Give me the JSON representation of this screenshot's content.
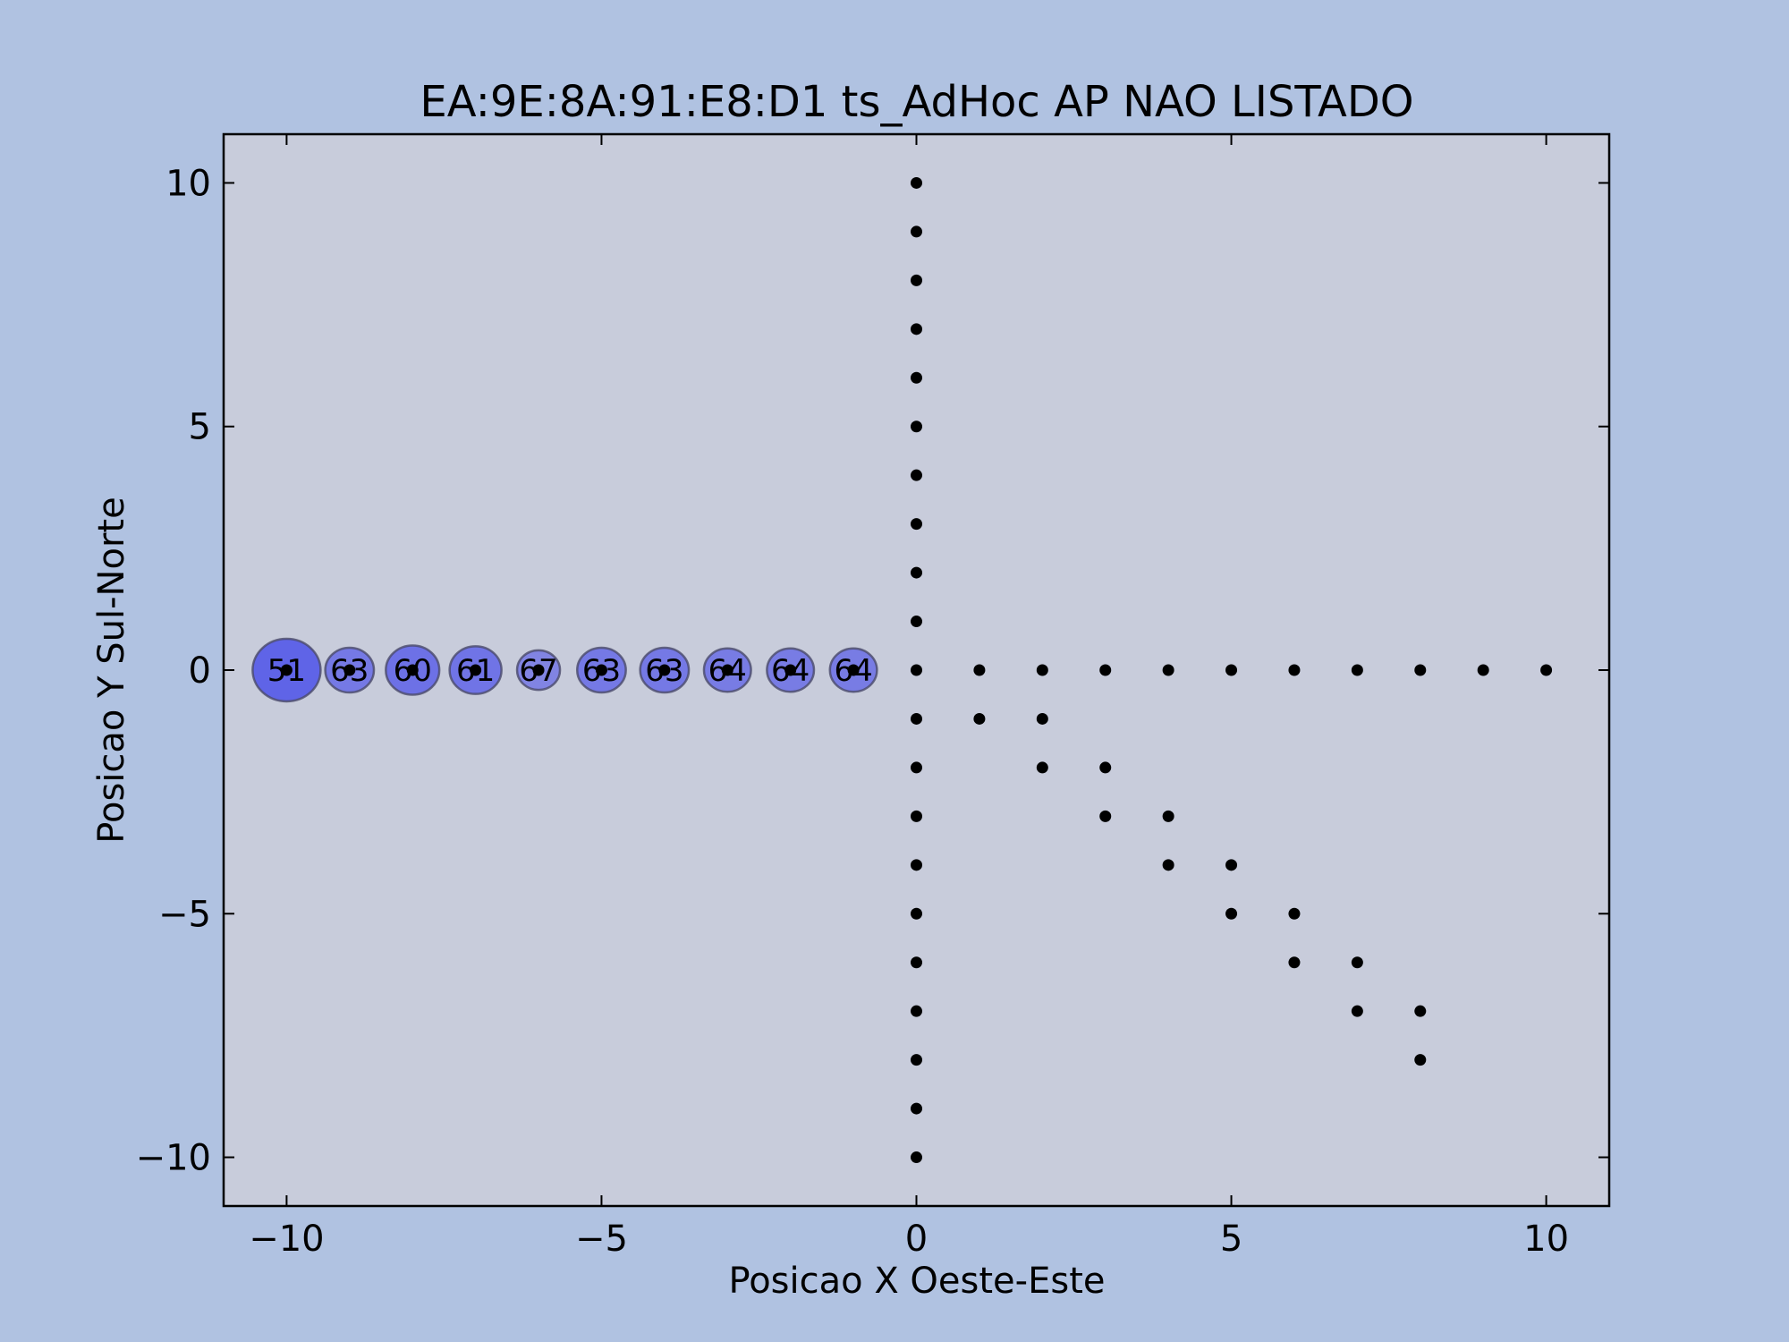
{
  "chart_data": {
    "type": "scatter",
    "title": "EA:9E:8A:91:E8:D1 ts_AdHoc AP NAO LISTADO",
    "xlabel": "Posicao X Oeste-Este",
    "ylabel": "Posicao Y Sul-Norte",
    "xlim": [
      -11,
      11
    ],
    "ylim": [
      -11,
      11
    ],
    "xticks": [
      -10,
      -5,
      0,
      5,
      10
    ],
    "yticks": [
      -10,
      -5,
      0,
      5,
      10
    ],
    "xtick_labels": [
      "−10",
      "−5",
      "0",
      "5",
      "10"
    ],
    "ytick_labels": [
      "−10",
      "−5",
      "0",
      "5",
      "10"
    ],
    "grid": false,
    "colors": {
      "figure_bg": "#b0c2e1",
      "axes_bg": "#c8ccdb",
      "bubble_fill": "#5a5ee8",
      "bubble_edge": "#4a4a6a",
      "point": "#000000",
      "bubble_label": "#ffffff"
    },
    "measurement_points": [
      {
        "x": 0,
        "y": 10
      },
      {
        "x": 0,
        "y": 9
      },
      {
        "x": 0,
        "y": 8
      },
      {
        "x": 0,
        "y": 7
      },
      {
        "x": 0,
        "y": 6
      },
      {
        "x": 0,
        "y": 5
      },
      {
        "x": 0,
        "y": 4
      },
      {
        "x": 0,
        "y": 3
      },
      {
        "x": 0,
        "y": 2
      },
      {
        "x": 0,
        "y": 1
      },
      {
        "x": 0,
        "y": 0
      },
      {
        "x": 0,
        "y": -1
      },
      {
        "x": 0,
        "y": -2
      },
      {
        "x": 0,
        "y": -3
      },
      {
        "x": 0,
        "y": -4
      },
      {
        "x": 0,
        "y": -5
      },
      {
        "x": 0,
        "y": -6
      },
      {
        "x": 0,
        "y": -7
      },
      {
        "x": 0,
        "y": -8
      },
      {
        "x": 0,
        "y": -9
      },
      {
        "x": 0,
        "y": -10
      },
      {
        "x": -1,
        "y": 0
      },
      {
        "x": -2,
        "y": 0
      },
      {
        "x": -3,
        "y": 0
      },
      {
        "x": -4,
        "y": 0
      },
      {
        "x": -5,
        "y": 0
      },
      {
        "x": -6,
        "y": 0
      },
      {
        "x": -7,
        "y": 0
      },
      {
        "x": -8,
        "y": 0
      },
      {
        "x": -9,
        "y": 0
      },
      {
        "x": -10,
        "y": 0
      },
      {
        "x": 1,
        "y": 0
      },
      {
        "x": 2,
        "y": 0
      },
      {
        "x": 3,
        "y": 0
      },
      {
        "x": 4,
        "y": 0
      },
      {
        "x": 5,
        "y": 0
      },
      {
        "x": 6,
        "y": 0
      },
      {
        "x": 7,
        "y": 0
      },
      {
        "x": 8,
        "y": 0
      },
      {
        "x": 9,
        "y": 0
      },
      {
        "x": 10,
        "y": 0
      },
      {
        "x": 1,
        "y": -1
      },
      {
        "x": 2,
        "y": -1
      },
      {
        "x": 2,
        "y": -2
      },
      {
        "x": 3,
        "y": -2
      },
      {
        "x": 3,
        "y": -3
      },
      {
        "x": 4,
        "y": -3
      },
      {
        "x": 4,
        "y": -4
      },
      {
        "x": 5,
        "y": -4
      },
      {
        "x": 5,
        "y": -5
      },
      {
        "x": 6,
        "y": -5
      },
      {
        "x": 6,
        "y": -6
      },
      {
        "x": 7,
        "y": -6
      },
      {
        "x": 7,
        "y": -7
      },
      {
        "x": 8,
        "y": -7
      },
      {
        "x": 8,
        "y": -8
      }
    ],
    "signal_bubbles": [
      {
        "x": -10,
        "y": 0,
        "value": 51
      },
      {
        "x": -9,
        "y": 0,
        "value": 63
      },
      {
        "x": -8,
        "y": 0,
        "value": 60
      },
      {
        "x": -7,
        "y": 0,
        "value": 61
      },
      {
        "x": -6,
        "y": 0,
        "value": 67
      },
      {
        "x": -5,
        "y": 0,
        "value": 63
      },
      {
        "x": -4,
        "y": 0,
        "value": 63
      },
      {
        "x": -3,
        "y": 0,
        "value": 64
      },
      {
        "x": -2,
        "y": 0,
        "value": 64
      },
      {
        "x": -1,
        "y": 0,
        "value": 64
      }
    ]
  }
}
